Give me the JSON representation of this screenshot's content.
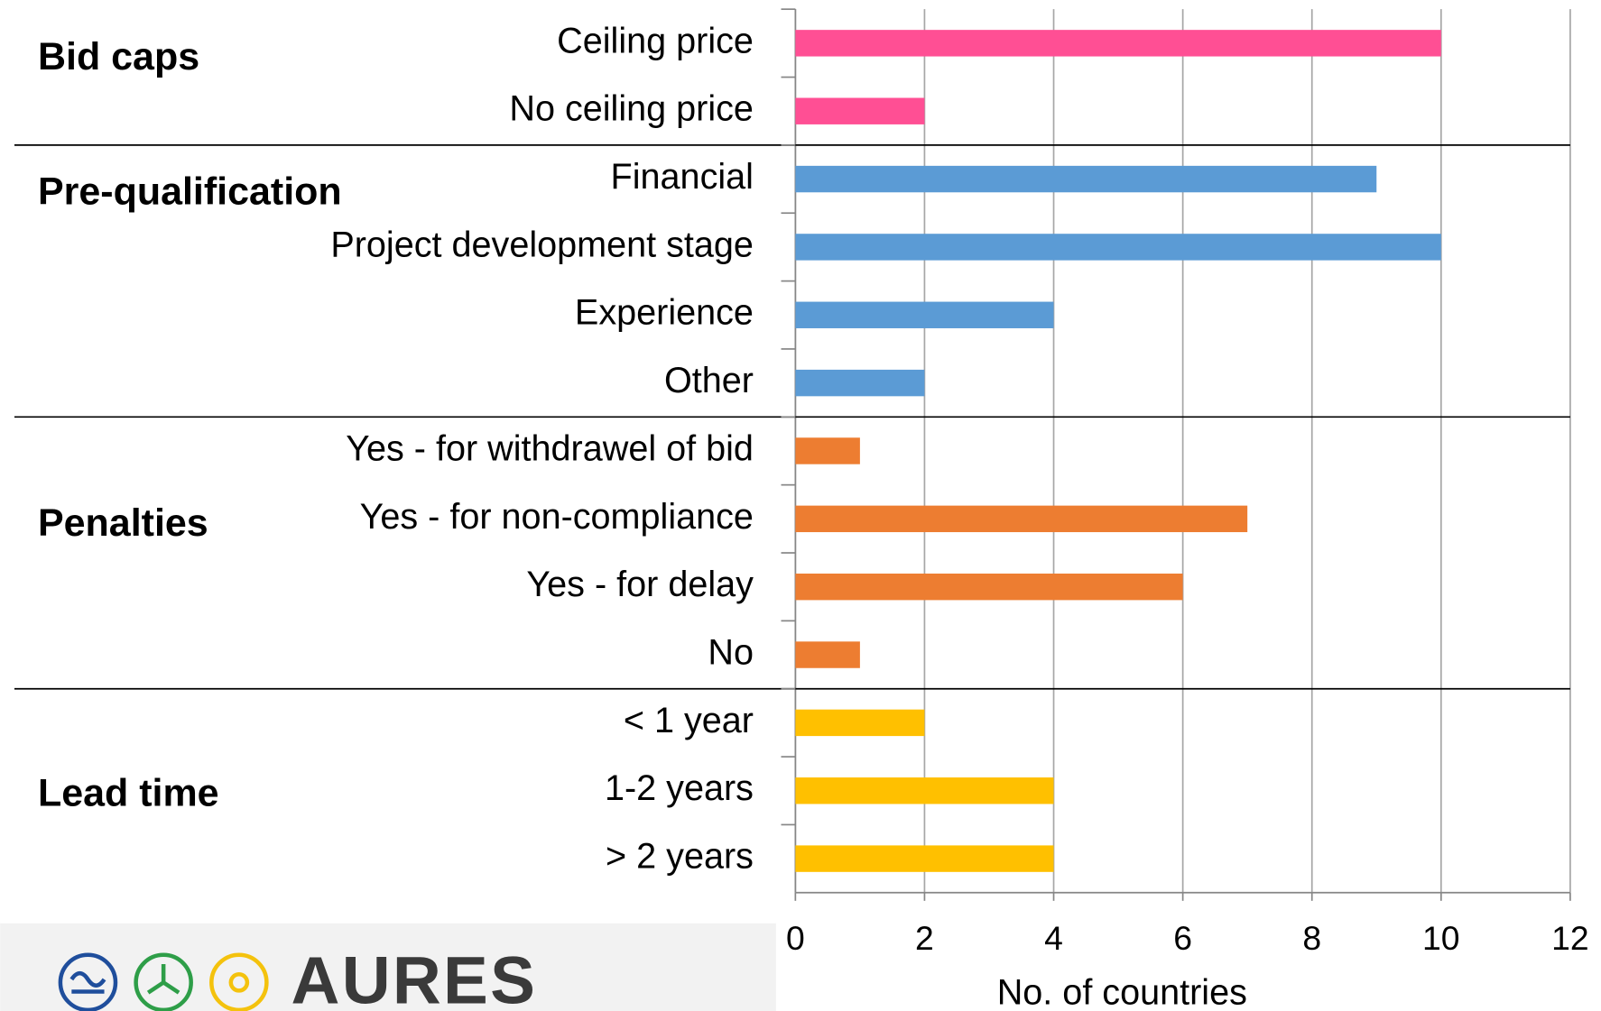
{
  "chart_data": {
    "type": "bar",
    "orientation": "horizontal",
    "groups": [
      {
        "name": "Bid caps",
        "color": "#ff4f94",
        "categories": [
          "Ceiling price",
          "No ceiling price"
        ],
        "values": [
          10,
          2
        ]
      },
      {
        "name": "Pre-qualification",
        "color": "#5b9bd5",
        "categories": [
          "Financial",
          "Project development stage",
          "Experience",
          "Other"
        ],
        "values": [
          9,
          10,
          4,
          2
        ]
      },
      {
        "name": "Penalties",
        "color": "#ed7d31",
        "categories": [
          "Yes - for withdrawel of bid",
          "Yes - for non-compliance",
          "Yes - for delay",
          "No"
        ],
        "values": [
          1,
          7,
          6,
          1
        ]
      },
      {
        "name": "Lead time",
        "color": "#ffc000",
        "categories": [
          "< 1 year",
          "1-2 years",
          "> 2 years"
        ],
        "values": [
          2,
          4,
          4
        ]
      }
    ],
    "xlim": [
      0,
      12
    ],
    "xticks": [
      0,
      2,
      4,
      6,
      8,
      10,
      12
    ],
    "xlabel": "No. of countries",
    "grid": true
  },
  "logo": {
    "text": "AURES"
  }
}
